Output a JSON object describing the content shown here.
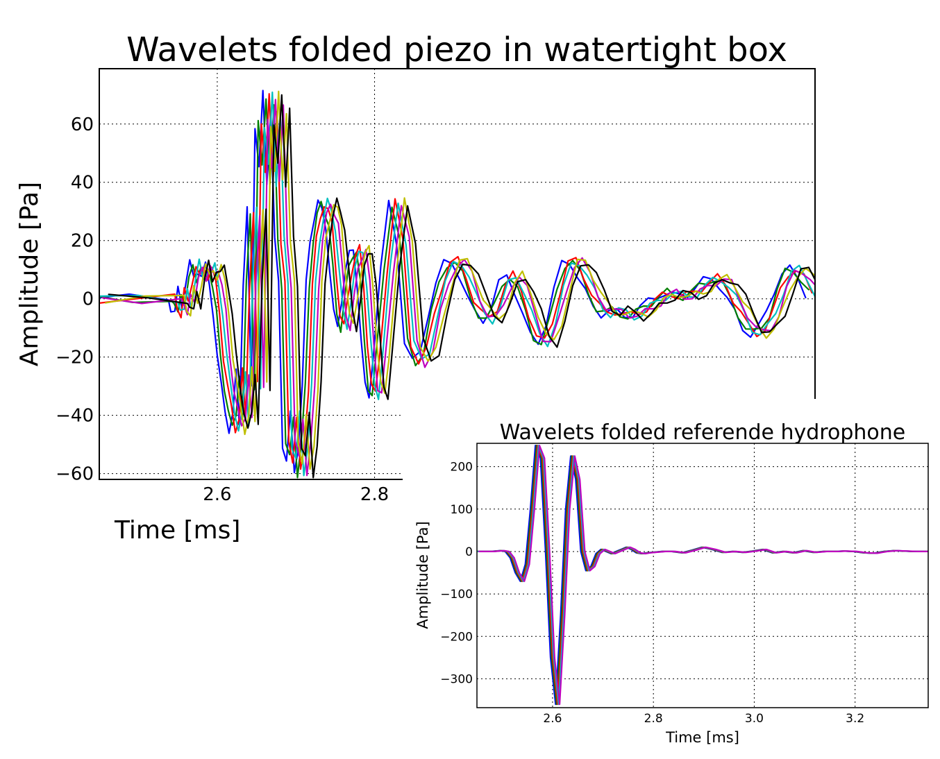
{
  "colors": [
    "#0000ff",
    "#007f00",
    "#ff0000",
    "#00bfbf",
    "#bf00bf",
    "#bfbf00",
    "#000000"
  ],
  "chart_data": [
    {
      "type": "line",
      "title": "Wavelets folded piezo in watertight box",
      "xlabel": "Time [ms]",
      "ylabel": "Amplitude [Pa]",
      "xlim": [
        2.45,
        3.36
      ],
      "ylim": [
        -62,
        79
      ],
      "xticks": [
        2.6,
        2.8
      ],
      "xtick_labels": [
        "2.6",
        "2.8"
      ],
      "yticks": [
        -60,
        -40,
        -20,
        0,
        20,
        40,
        60
      ],
      "ytick_labels": [
        "−60",
        "−40",
        "−20",
        "0",
        "20",
        "40",
        "60"
      ],
      "grid": true,
      "n_traces": 7,
      "series_spread": 0.004,
      "x": [
        2.45,
        2.5,
        2.55,
        2.553,
        2.558,
        2.562,
        2.567,
        2.572,
        2.577,
        2.582,
        2.587,
        2.592,
        2.597,
        2.602,
        2.607,
        2.612,
        2.617,
        2.622,
        2.627,
        2.632,
        2.636,
        2.64,
        2.645,
        2.65,
        2.655,
        2.66,
        2.665,
        2.67,
        2.675,
        2.68,
        2.685,
        2.69,
        2.695,
        2.7,
        2.705,
        2.71,
        2.715,
        2.72,
        2.725,
        2.73,
        2.735,
        2.74,
        2.745,
        2.75,
        2.755,
        2.76,
        2.765,
        2.77,
        2.775,
        2.78,
        2.785,
        2.79,
        2.795,
        2.8,
        2.805,
        2.81,
        2.82,
        2.83,
        2.84,
        2.85,
        2.86,
        2.87,
        2.88,
        2.89,
        2.9,
        2.91,
        2.92,
        2.93,
        2.94,
        2.95,
        2.96,
        2.97,
        2.98,
        2.99,
        3.0,
        3.01,
        3.02,
        3.03,
        3.04,
        3.05,
        3.06,
        3.07,
        3.08,
        3.09,
        3.1,
        3.11,
        3.12,
        3.13,
        3.14,
        3.15,
        3.16,
        3.17,
        3.18,
        3.19,
        3.2,
        3.21,
        3.22,
        3.23,
        3.24,
        3.25,
        3.26,
        3.27,
        3.28,
        3.29,
        3.3,
        3.31,
        3.32,
        3.33,
        3.34,
        3.35,
        3.36
      ],
      "y": [
        0,
        0,
        0,
        -3,
        -5,
        3,
        -2,
        6,
        12,
        7,
        10,
        8,
        11,
        5,
        -5,
        -20,
        -30,
        -38,
        -45,
        -40,
        -25,
        -42,
        5,
        30,
        -30,
        60,
        45,
        70,
        40,
        65,
        20,
        5,
        -50,
        -55,
        -40,
        -60,
        -50,
        -30,
        5,
        20,
        28,
        33,
        30,
        25,
        10,
        -5,
        -10,
        0,
        10,
        15,
        17,
        5,
        -15,
        -30,
        -33,
        -20,
        10,
        33,
        20,
        -15,
        -22,
        -18,
        -5,
        5,
        12,
        13,
        8,
        0,
        -5,
        -7,
        -3,
        5,
        8,
        3,
        -5,
        -13,
        -15,
        -8,
        3,
        12,
        13,
        8,
        2,
        -3,
        -5,
        -4,
        -5,
        -6,
        -5,
        -3,
        -1,
        1,
        2,
        1,
        1,
        2,
        4,
        6,
        7,
        5,
        0,
        -5,
        -10,
        -12,
        -10,
        -5,
        3,
        9,
        10,
        7,
        2
      ]
    },
    {
      "type": "line",
      "title": "Wavelets folded referende hydrophone",
      "xlabel": "Time [ms]",
      "ylabel": "Amplitude [Pa]",
      "xlim": [
        2.45,
        3.345
      ],
      "ylim": [
        -368,
        255
      ],
      "xticks": [
        2.6,
        2.8,
        3.0,
        3.2
      ],
      "xtick_labels": [
        "2.6",
        "2.8",
        "3.0",
        "3.2"
      ],
      "yticks": [
        -300,
        -200,
        -100,
        0,
        100,
        200
      ],
      "ytick_labels": [
        "−300",
        "−200",
        "−100",
        "0",
        "100",
        "200"
      ],
      "grid": true,
      "n_traces": 5,
      "series_spread": 0.002,
      "x": [
        2.45,
        2.48,
        2.5,
        2.51,
        2.52,
        2.53,
        2.54,
        2.55,
        2.56,
        2.57,
        2.58,
        2.59,
        2.6,
        2.61,
        2.62,
        2.63,
        2.64,
        2.65,
        2.66,
        2.67,
        2.68,
        2.69,
        2.7,
        2.71,
        2.72,
        2.73,
        2.74,
        2.75,
        2.76,
        2.77,
        2.78,
        2.79,
        2.8,
        2.82,
        2.84,
        2.86,
        2.88,
        2.9,
        2.92,
        2.94,
        2.96,
        2.98,
        3.0,
        3.02,
        3.04,
        3.06,
        3.08,
        3.1,
        3.12,
        3.14,
        3.16,
        3.18,
        3.2,
        3.22,
        3.24,
        3.26,
        3.28,
        3.3,
        3.32,
        3.345
      ],
      "y": [
        0,
        0,
        2,
        0,
        -15,
        -50,
        -70,
        -30,
        100,
        250,
        220,
        0,
        -250,
        -360,
        -150,
        100,
        225,
        170,
        0,
        -45,
        -35,
        -5,
        5,
        0,
        -5,
        0,
        5,
        10,
        5,
        -3,
        -5,
        -3,
        -2,
        0,
        0,
        -3,
        3,
        10,
        5,
        -2,
        0,
        -2,
        1,
        5,
        -3,
        0,
        -3,
        2,
        -2,
        0,
        0,
        1,
        0,
        -3,
        -4,
        0,
        2,
        1,
        0,
        0
      ]
    }
  ]
}
